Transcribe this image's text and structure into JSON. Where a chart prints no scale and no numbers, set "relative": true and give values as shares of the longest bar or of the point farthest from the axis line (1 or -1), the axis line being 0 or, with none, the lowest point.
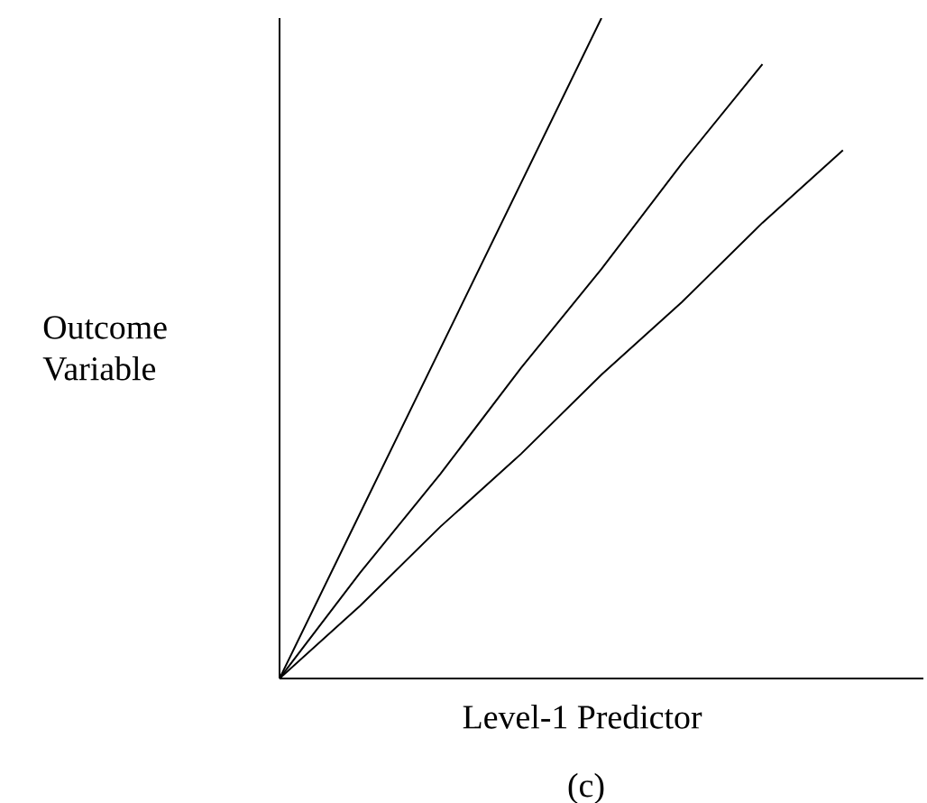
{
  "chart_data": {
    "type": "line",
    "relative": true,
    "xlabel": "Level-1 Predictor",
    "ylabel": "Outcome Variable",
    "annotations": [
      "(c)"
    ],
    "categories": [
      null,
      null,
      null,
      null,
      null,
      null,
      null,
      null,
      null
    ],
    "tick_labels": false,
    "marker": "none",
    "line_style": "solid",
    "series": [
      {
        "color": "#000000",
        "values": [
          0,
          0.25,
          0.5,
          0.75,
          1,
          null,
          null,
          null,
          null
        ]
      },
      {
        "color": "#000000",
        "values": [
          0,
          0.16,
          0.31,
          0.47,
          0.62,
          0.78,
          0.93,
          null,
          null
        ]
      },
      {
        "color": "#000000",
        "values": [
          0,
          0.11,
          0.23,
          0.34,
          0.46,
          0.57,
          0.69,
          0.8,
          null
        ]
      }
    ]
  }
}
